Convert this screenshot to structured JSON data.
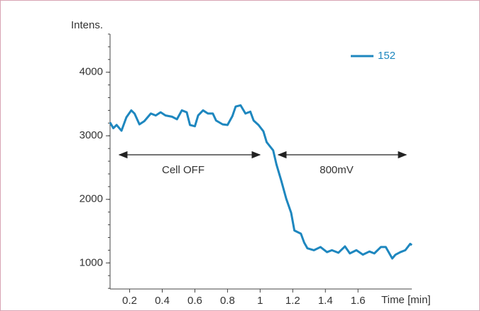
{
  "chart_data": {
    "type": "line",
    "y_label": "Intens.",
    "x_label": "Time [min]",
    "annotations": [
      "Cell OFF",
      "800mV"
    ],
    "x": [
      0.08,
      0.1,
      0.12,
      0.15,
      0.18,
      0.21,
      0.23,
      0.26,
      0.29,
      0.33,
      0.36,
      0.39,
      0.42,
      0.46,
      0.49,
      0.52,
      0.55,
      0.57,
      0.6,
      0.62,
      0.65,
      0.68,
      0.71,
      0.73,
      0.77,
      0.8,
      0.83,
      0.85,
      0.88,
      0.91,
      0.94,
      0.96,
      0.99,
      1.02,
      1.04,
      1.08,
      1.1,
      1.13,
      1.16,
      1.19,
      1.21,
      1.25,
      1.27,
      1.29,
      1.33,
      1.37,
      1.41,
      1.44,
      1.48,
      1.52,
      1.55,
      1.59,
      1.63,
      1.67,
      1.7,
      1.74,
      1.77,
      1.81,
      1.83,
      1.86,
      1.89,
      1.92,
      1.93
    ],
    "series": [
      {
        "name": "152",
        "color": "#1e87bf",
        "values": [
          3210,
          3120,
          3170,
          3080,
          3290,
          3400,
          3350,
          3180,
          3230,
          3350,
          3320,
          3370,
          3320,
          3300,
          3260,
          3400,
          3370,
          3170,
          3150,
          3320,
          3400,
          3350,
          3350,
          3240,
          3180,
          3170,
          3310,
          3460,
          3480,
          3350,
          3380,
          3240,
          3170,
          3070,
          2900,
          2770,
          2550,
          2290,
          2010,
          1790,
          1510,
          1460,
          1320,
          1230,
          1200,
          1250,
          1170,
          1200,
          1160,
          1260,
          1150,
          1200,
          1130,
          1180,
          1150,
          1250,
          1250,
          1070,
          1130,
          1170,
          1200,
          1300,
          1280
        ]
      }
    ],
    "xlim": [
      0.08,
      1.93
    ],
    "ylim": [
      590,
      4600
    ],
    "xticks": [
      0.2,
      0.4,
      0.6,
      0.8,
      1.0,
      1.2,
      1.4,
      1.6
    ],
    "yticks": [
      1000,
      2000,
      3000,
      4000
    ],
    "legend": "top-right"
  }
}
